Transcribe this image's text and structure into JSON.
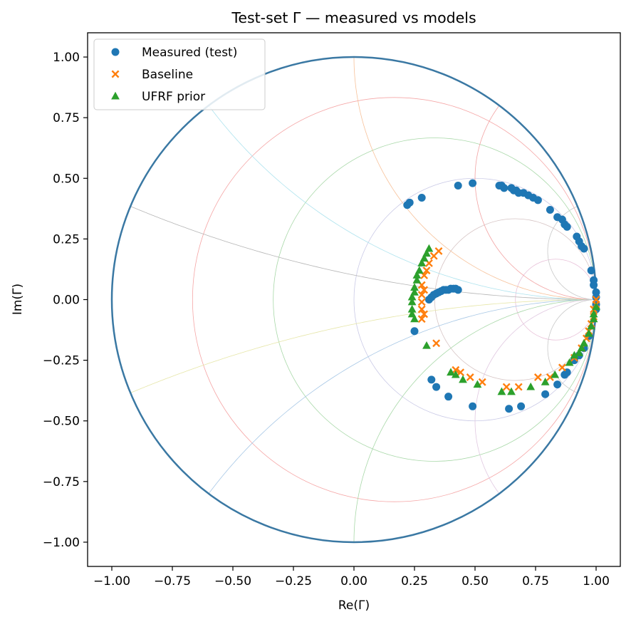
{
  "chart_data": {
    "type": "scatter",
    "title": "Test-set Γ — measured vs models",
    "xlabel": "Re(Γ)",
    "ylabel": "Im(Γ)",
    "xlim": [
      -1.1,
      1.1
    ],
    "ylim": [
      -1.1,
      1.1
    ],
    "x_ticks": [
      -1.0,
      -0.75,
      -0.5,
      -0.25,
      0.0,
      0.25,
      0.5,
      0.75,
      1.0
    ],
    "x_tick_labels": [
      "−1.00",
      "−0.75",
      "−0.50",
      "−0.25",
      "0.00",
      "0.25",
      "0.50",
      "0.75",
      "1.00"
    ],
    "y_ticks": [
      1.0,
      0.75,
      0.5,
      0.25,
      0.0,
      -0.25,
      -0.5,
      -0.75,
      -1.0
    ],
    "y_tick_labels": [
      "1.00",
      "0.75",
      "0.50",
      "0.25",
      "0.00",
      "−0.25",
      "−0.50",
      "−0.75",
      "−1.00"
    ],
    "grid": false,
    "legend_position": "top-left",
    "background_grid": {
      "type": "smith-chart",
      "unit_circle_color": "#3a78a3",
      "resistance_circles": [
        0.2,
        0.5,
        1,
        2,
        5
      ],
      "reactance_arcs": [
        0.2,
        0.5,
        1,
        2,
        5,
        -0.2,
        -0.5,
        -1,
        -2,
        -5
      ],
      "resistance_colors": [
        "#f5a6a6",
        "#a8d8a8",
        "#c9c9e6",
        "#d6c4c4",
        "#e8c0d8"
      ],
      "reactance_colors": [
        "#b5b5b5",
        "#aee3ee",
        "#f7c199",
        "#f2a3a3",
        "#c8c8c8",
        "#e6e6a8",
        "#a8c8e6",
        "#a8d8a8",
        "#e0c8e0",
        "#c8c8c8"
      ]
    },
    "series": [
      {
        "name": "Measured (test)",
        "marker": "circle",
        "color": "#1f77b4",
        "points": [
          [
            0.22,
            0.39
          ],
          [
            0.23,
            0.4
          ],
          [
            0.28,
            0.42
          ],
          [
            0.43,
            0.47
          ],
          [
            0.49,
            0.48
          ],
          [
            0.6,
            0.47
          ],
          [
            0.61,
            0.47
          ],
          [
            0.62,
            0.46
          ],
          [
            0.65,
            0.46
          ],
          [
            0.66,
            0.45
          ],
          [
            0.67,
            0.45
          ],
          [
            0.68,
            0.44
          ],
          [
            0.7,
            0.44
          ],
          [
            0.72,
            0.43
          ],
          [
            0.74,
            0.42
          ],
          [
            0.76,
            0.41
          ],
          [
            0.81,
            0.37
          ],
          [
            0.84,
            0.34
          ],
          [
            0.86,
            0.33
          ],
          [
            0.87,
            0.31
          ],
          [
            0.88,
            0.3
          ],
          [
            0.92,
            0.26
          ],
          [
            0.93,
            0.24
          ],
          [
            0.94,
            0.22
          ],
          [
            0.95,
            0.21
          ],
          [
            0.98,
            0.12
          ],
          [
            0.99,
            0.08
          ],
          [
            0.99,
            0.06
          ],
          [
            1.0,
            0.03
          ],
          [
            1.0,
            0.01
          ],
          [
            1.0,
            -0.02
          ],
          [
            1.0,
            -0.04
          ],
          [
            0.31,
            0.0
          ],
          [
            0.32,
            0.01
          ],
          [
            0.33,
            0.02
          ],
          [
            0.34,
            0.025
          ],
          [
            0.35,
            0.03
          ],
          [
            0.36,
            0.035
          ],
          [
            0.37,
            0.04
          ],
          [
            0.38,
            0.04
          ],
          [
            0.39,
            0.04
          ],
          [
            0.4,
            0.045
          ],
          [
            0.41,
            0.045
          ],
          [
            0.42,
            0.045
          ],
          [
            0.43,
            0.04
          ],
          [
            0.25,
            -0.13
          ],
          [
            0.32,
            -0.33
          ],
          [
            0.34,
            -0.36
          ],
          [
            0.39,
            -0.4
          ],
          [
            0.49,
            -0.44
          ],
          [
            0.64,
            -0.45
          ],
          [
            0.69,
            -0.44
          ],
          [
            0.79,
            -0.39
          ],
          [
            0.84,
            -0.35
          ],
          [
            0.87,
            -0.31
          ],
          [
            0.88,
            -0.3
          ],
          [
            0.91,
            -0.25
          ],
          [
            0.93,
            -0.23
          ],
          [
            0.95,
            -0.2
          ],
          [
            0.97,
            -0.15
          ]
        ]
      },
      {
        "name": "Baseline",
        "marker": "x",
        "color": "#ff7f0e",
        "points": [
          [
            0.35,
            0.2
          ],
          [
            0.33,
            0.18
          ],
          [
            0.31,
            0.15
          ],
          [
            0.3,
            0.12
          ],
          [
            0.29,
            0.1
          ],
          [
            0.28,
            0.06
          ],
          [
            0.29,
            0.04
          ],
          [
            0.28,
            0.02
          ],
          [
            0.28,
            -0.01
          ],
          [
            0.28,
            -0.04
          ],
          [
            0.29,
            -0.06
          ],
          [
            0.28,
            -0.08
          ],
          [
            0.34,
            -0.18
          ],
          [
            0.42,
            -0.29
          ],
          [
            0.44,
            -0.3
          ],
          [
            0.48,
            -0.32
          ],
          [
            0.53,
            -0.34
          ],
          [
            0.63,
            -0.36
          ],
          [
            0.68,
            -0.36
          ],
          [
            0.76,
            -0.32
          ],
          [
            0.81,
            -0.32
          ],
          [
            0.86,
            -0.28
          ],
          [
            0.91,
            -0.24
          ],
          [
            0.94,
            -0.2
          ],
          [
            0.96,
            -0.16
          ],
          [
            0.97,
            -0.13
          ],
          [
            0.98,
            -0.1
          ],
          [
            0.99,
            -0.07
          ],
          [
            0.99,
            -0.04
          ],
          [
            1.0,
            -0.02
          ],
          [
            1.0,
            0.0
          ]
        ]
      },
      {
        "name": "UFRF prior",
        "marker": "triangle",
        "color": "#2ca02c",
        "points": [
          [
            0.31,
            0.21
          ],
          [
            0.3,
            0.19
          ],
          [
            0.29,
            0.17
          ],
          [
            0.28,
            0.15
          ],
          [
            0.27,
            0.12
          ],
          [
            0.26,
            0.1
          ],
          [
            0.26,
            0.08
          ],
          [
            0.25,
            0.05
          ],
          [
            0.25,
            0.03
          ],
          [
            0.24,
            0.01
          ],
          [
            0.24,
            -0.01
          ],
          [
            0.24,
            -0.04
          ],
          [
            0.24,
            -0.06
          ],
          [
            0.25,
            -0.08
          ],
          [
            0.3,
            -0.19
          ],
          [
            0.4,
            -0.3
          ],
          [
            0.42,
            -0.31
          ],
          [
            0.45,
            -0.33
          ],
          [
            0.51,
            -0.35
          ],
          [
            0.61,
            -0.38
          ],
          [
            0.65,
            -0.38
          ],
          [
            0.73,
            -0.36
          ],
          [
            0.79,
            -0.34
          ],
          [
            0.83,
            -0.31
          ],
          [
            0.89,
            -0.26
          ],
          [
            0.91,
            -0.23
          ],
          [
            0.93,
            -0.22
          ],
          [
            0.94,
            -0.2
          ],
          [
            0.95,
            -0.18
          ],
          [
            0.97,
            -0.14
          ],
          [
            0.98,
            -0.11
          ],
          [
            0.99,
            -0.08
          ],
          [
            0.99,
            -0.06
          ],
          [
            1.0,
            -0.03
          ]
        ]
      }
    ]
  }
}
